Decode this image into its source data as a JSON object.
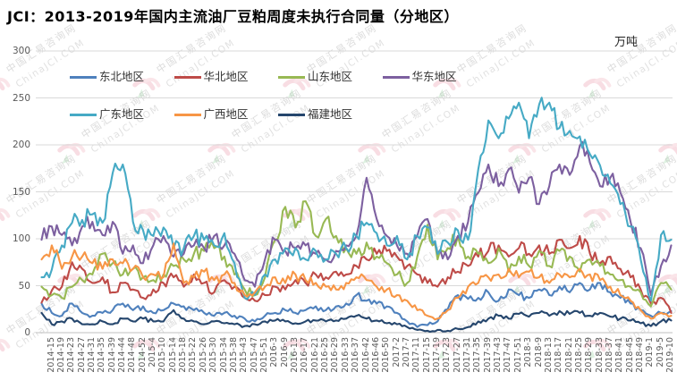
{
  "header": {
    "title": "JCI：2013-2019年国内主流油厂豆粕周度未执行合同量（分地区）",
    "unit_label": "万吨"
  },
  "watermark": {
    "line1": "中国汇易咨询网",
    "line2": "ChinaJCI.COM",
    "logo": "jci-pink-hook-with-green-leaf"
  },
  "chart_data": {
    "type": "line",
    "title": "JCI：2013-2019年国内主流油厂豆粕周度未执行合同量（分地区）",
    "xlabel": "",
    "ylabel": "万吨",
    "ylim": [
      0,
      300
    ],
    "y_ticks": [
      0,
      50,
      100,
      150,
      200,
      250,
      300
    ],
    "grid": "horizontal",
    "legend_position": "top-left inside plot, two rows",
    "x": [
      "2014-15",
      "2014-19",
      "2014-23",
      "2014-27",
      "2014-31",
      "2014-35",
      "2014-39",
      "2014-44",
      "2014-48",
      "2014-52",
      "2015-4",
      "2015-10",
      "2015-14",
      "2015-18",
      "2015-22",
      "2015-26",
      "2015-30",
      "2015-34",
      "2015-38",
      "2015-43",
      "2015-47",
      "2015-51",
      "2016-3",
      "2016-9",
      "2016-13",
      "2016-17",
      "2016-21",
      "2016-25",
      "2016-29",
      "2016-33",
      "2016-37",
      "2016-42",
      "2016-46",
      "2016-50",
      "2017-2",
      "2017-7",
      "2017-11",
      "2017-15",
      "2017-19",
      "2017-23",
      "2017-27",
      "2017-31",
      "2017-35",
      "2017-39",
      "2017-43",
      "2017-47",
      "2017-51",
      "2018-3",
      "2018-9",
      "2018-13",
      "2018-17",
      "2018-21",
      "2018-25",
      "2018-29",
      "2018-33",
      "2018-37",
      "2018-41",
      "2018-45",
      "2018-49",
      "2019-1",
      "2019-5",
      "2019-10",
      "2019-14"
    ],
    "series": [
      {
        "name": "东北地区",
        "color": "#4F81BD",
        "values": [
          31,
          21,
          18,
          31,
          21,
          18,
          21,
          24,
          31,
          24,
          28,
          21,
          24,
          31,
          28,
          24,
          21,
          18,
          21,
          18,
          15,
          12,
          18,
          21,
          24,
          21,
          24,
          28,
          24,
          28,
          31,
          40,
          34,
          31,
          28,
          21,
          12,
          6,
          8,
          12,
          25,
          40,
          36,
          37,
          43,
          34,
          46,
          40,
          37,
          46,
          40,
          49,
          43,
          53,
          46,
          53,
          43,
          37,
          31,
          24,
          18,
          21,
          23
        ]
      },
      {
        "name": "华北地区",
        "color": "#BE4B48",
        "values": [
          32,
          45,
          49,
          75,
          68,
          53,
          59,
          43,
          53,
          46,
          37,
          46,
          53,
          59,
          49,
          62,
          53,
          43,
          56,
          49,
          37,
          34,
          40,
          49,
          46,
          56,
          53,
          62,
          59,
          65,
          62,
          71,
          78,
          84,
          87,
          81,
          71,
          62,
          53,
          49,
          59,
          65,
          71,
          81,
          87,
          93,
          81,
          90,
          84,
          93,
          84,
          99,
          90,
          103,
          84,
          74,
          81,
          68,
          59,
          46,
          31,
          37,
          21
        ]
      },
      {
        "name": "山东地区",
        "color": "#98B954",
        "values": [
          49,
          40,
          37,
          49,
          56,
          62,
          84,
          74,
          62,
          68,
          59,
          56,
          62,
          71,
          78,
          84,
          87,
          90,
          81,
          62,
          46,
          40,
          59,
          99,
          134,
          112,
          140,
          103,
          121,
          103,
          90,
          84,
          96,
          81,
          74,
          62,
          53,
          81,
          115,
          78,
          90,
          103,
          81,
          84,
          74,
          90,
          65,
          81,
          71,
          87,
          71,
          87,
          81,
          65,
          78,
          71,
          62,
          56,
          49,
          43,
          28,
          53,
          46
        ]
      },
      {
        "name": "华东地区",
        "color": "#7D60A0",
        "values": [
          99,
          113,
          104,
          93,
          113,
          118,
          104,
          118,
          84,
          93,
          74,
          93,
          103,
          81,
          84,
          93,
          90,
          103,
          93,
          84,
          56,
          49,
          78,
          99,
          87,
          90,
          93,
          84,
          78,
          87,
          93,
          103,
          165,
          121,
          103,
          93,
          84,
          103,
          121,
          84,
          78,
          103,
          118,
          149,
          179,
          156,
          174,
          149,
          165,
          137,
          156,
          179,
          168,
          199,
          181,
          156,
          165,
          149,
          118,
          90,
          40,
          71,
          93
        ]
      },
      {
        "name": "广东地区",
        "color": "#46AAC5",
        "values": [
          59,
          67,
          93,
          117,
          120,
          126,
          117,
          170,
          179,
          118,
          109,
          103,
          112,
          90,
          90,
          103,
          99,
          93,
          106,
          74,
          37,
          40,
          62,
          78,
          90,
          90,
          78,
          87,
          78,
          84,
          90,
          103,
          117,
          106,
          93,
          103,
          78,
          103,
          112,
          84,
          96,
          109,
          99,
          174,
          226,
          207,
          228,
          245,
          207,
          243,
          245,
          218,
          215,
          209,
          190,
          178,
          159,
          137,
          113,
          78,
          34,
          104,
          99
        ]
      },
      {
        "name": "广西地区",
        "color": "#F79646",
        "values": [
          78,
          93,
          68,
          81,
          81,
          74,
          68,
          78,
          74,
          68,
          59,
          62,
          59,
          95,
          53,
          59,
          65,
          56,
          62,
          53,
          40,
          43,
          49,
          59,
          53,
          62,
          56,
          53,
          49,
          46,
          53,
          59,
          56,
          49,
          46,
          40,
          34,
          24,
          18,
          15,
          24,
          37,
          49,
          53,
          59,
          62,
          68,
          59,
          65,
          59,
          53,
          62,
          59,
          68,
          62,
          56,
          49,
          40,
          34,
          24,
          15,
          21,
          18
        ]
      },
      {
        "name": "福建地区",
        "color": "#25466D",
        "values": [
          21,
          9,
          12,
          15,
          9,
          9,
          12,
          9,
          15,
          12,
          15,
          12,
          12,
          24,
          15,
          12,
          9,
          12,
          10,
          9,
          7,
          9,
          12,
          13,
          12,
          10,
          12,
          13,
          12,
          13,
          15,
          18,
          15,
          13,
          10,
          9,
          6,
          3,
          2,
          3,
          2,
          4,
          6,
          12,
          15,
          18,
          15,
          20,
          17,
          21,
          18,
          23,
          20,
          21,
          18,
          21,
          17,
          15,
          13,
          10,
          7,
          12,
          13
        ]
      }
    ]
  }
}
